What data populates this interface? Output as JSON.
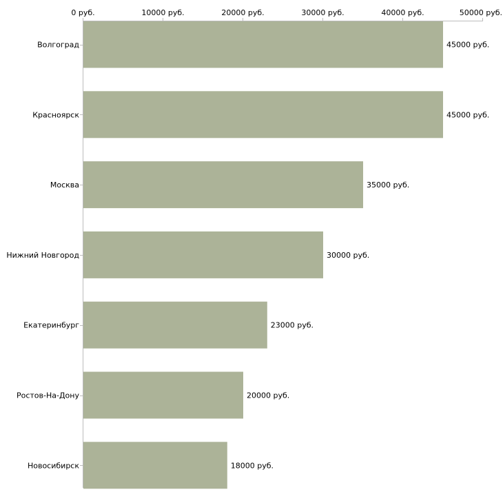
{
  "chart_data": {
    "type": "bar",
    "orientation": "horizontal",
    "title": "",
    "xlabel": "",
    "ylabel": "",
    "xlim": [
      0,
      50000
    ],
    "x_ticks": [
      0,
      10000,
      20000,
      30000,
      40000,
      50000
    ],
    "x_tick_labels": [
      "0 руб.",
      "10000 руб.",
      "20000 руб.",
      "30000 руб.",
      "40000 руб.",
      "50000 руб."
    ],
    "x_axis_position": "top",
    "grid": false,
    "categories": [
      "Волгоград",
      "Красноярск",
      "Москва",
      "Нижний Новгород",
      "Екатеринбург",
      "Ростов-На-Дону",
      "Новосибирск"
    ],
    "values": [
      45000,
      45000,
      35000,
      30000,
      23000,
      20000,
      18000
    ],
    "data_labels": [
      "45000 руб.",
      "45000 руб.",
      "35000 руб.",
      "30000 руб.",
      "23000 руб.",
      "20000 руб.",
      "18000 руб."
    ],
    "bar_color": "#acb398",
    "axis_color": "#bbbbbb"
  }
}
